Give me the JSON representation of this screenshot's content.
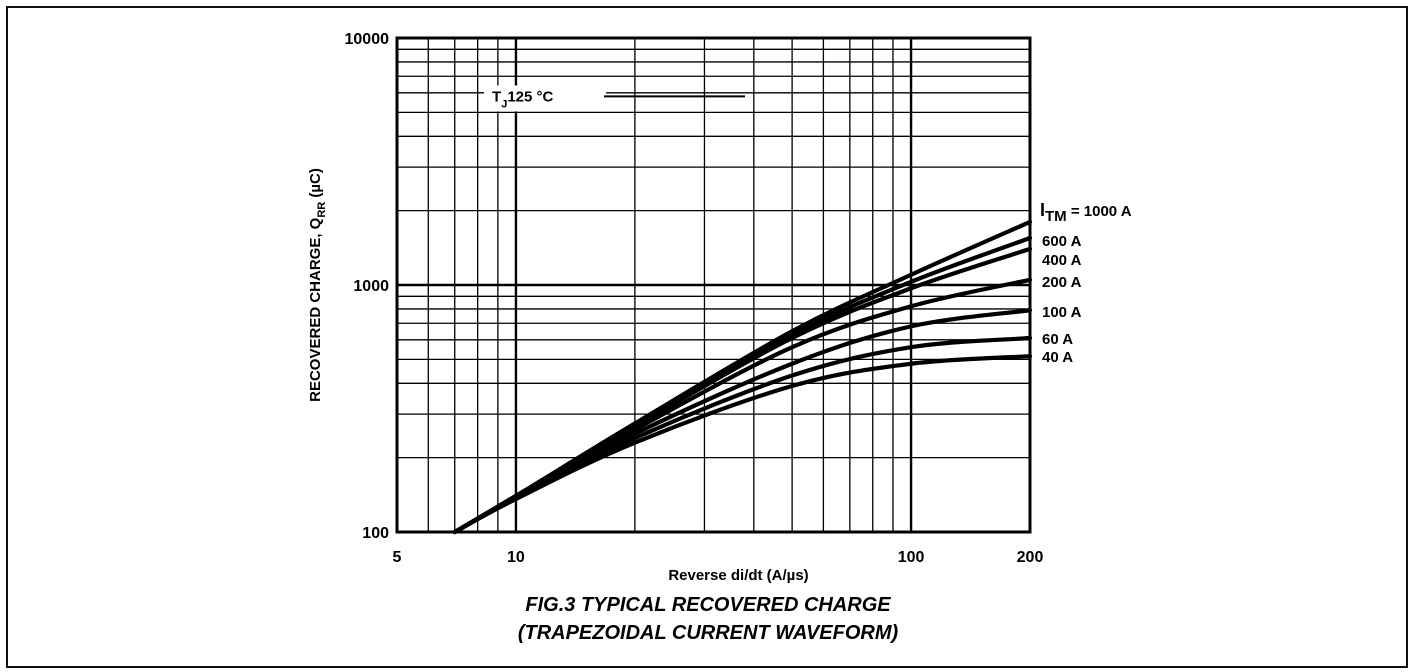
{
  "chart_data": {
    "type": "line",
    "xscale": "log",
    "yscale": "log",
    "xlim": [
      5,
      200
    ],
    "ylim": [
      100,
      10000
    ],
    "grid": true,
    "x_ticks": [
      {
        "value": 5,
        "label": "5"
      },
      {
        "value": 10,
        "label": "10"
      },
      {
        "value": 100,
        "label": "100"
      },
      {
        "value": 200,
        "label": "200"
      }
    ],
    "y_ticks": [
      {
        "value": 100,
        "label": "100"
      },
      {
        "value": 1000,
        "label": "1000"
      },
      {
        "value": 10000,
        "label": "10000"
      }
    ],
    "xlabel": "Reverse di/dt (A/µs)",
    "ylabel_main": "RECOVERED CHARGE, Q",
    "ylabel_sub": "RR",
    "ylabel_unit": " (µC)",
    "annotation": {
      "main": "T",
      "sub": "J",
      "rest": "125 °C",
      "x": 8.6,
      "y": 5800
    },
    "series_header": {
      "main": "I",
      "sub": "TM",
      "rest": " = 1000 A"
    },
    "series": [
      {
        "name": "1000 A",
        "label": "",
        "x": [
          7,
          10,
          20,
          50,
          100,
          200
        ],
        "values": [
          100,
          140,
          275,
          650,
          1100,
          1800
        ]
      },
      {
        "name": "600 A",
        "label": "600 A",
        "x": [
          7,
          10,
          20,
          50,
          100,
          200
        ],
        "values": [
          100,
          140,
          272,
          630,
          1030,
          1550
        ]
      },
      {
        "name": "400 A",
        "label": "400 A",
        "x": [
          7,
          10,
          20,
          50,
          100,
          200
        ],
        "values": [
          100,
          140,
          268,
          610,
          970,
          1400
        ]
      },
      {
        "name": "200 A",
        "label": "200 A",
        "x": [
          7,
          10,
          20,
          50,
          100,
          200
        ],
        "values": [
          100,
          139,
          260,
          560,
          820,
          1050
        ]
      },
      {
        "name": "100 A",
        "label": "100 A",
        "x": [
          7,
          10,
          20,
          50,
          100,
          200
        ],
        "values": [
          100,
          138,
          250,
          480,
          680,
          790
        ]
      },
      {
        "name": "60 A",
        "label": "60 A",
        "x": [
          7,
          10,
          20,
          50,
          100,
          200
        ],
        "values": [
          100,
          137,
          240,
          430,
          560,
          610
        ]
      },
      {
        "name": "40 A",
        "label": "40 A",
        "x": [
          7,
          10,
          20,
          50,
          100,
          200
        ],
        "values": [
          100,
          136,
          230,
          390,
          480,
          515
        ]
      }
    ],
    "title_line1": "FIG.3 TYPICAL RECOVERED CHARGE",
    "title_line2": "(TRAPEZOIDAL CURRENT WAVEFORM)"
  }
}
